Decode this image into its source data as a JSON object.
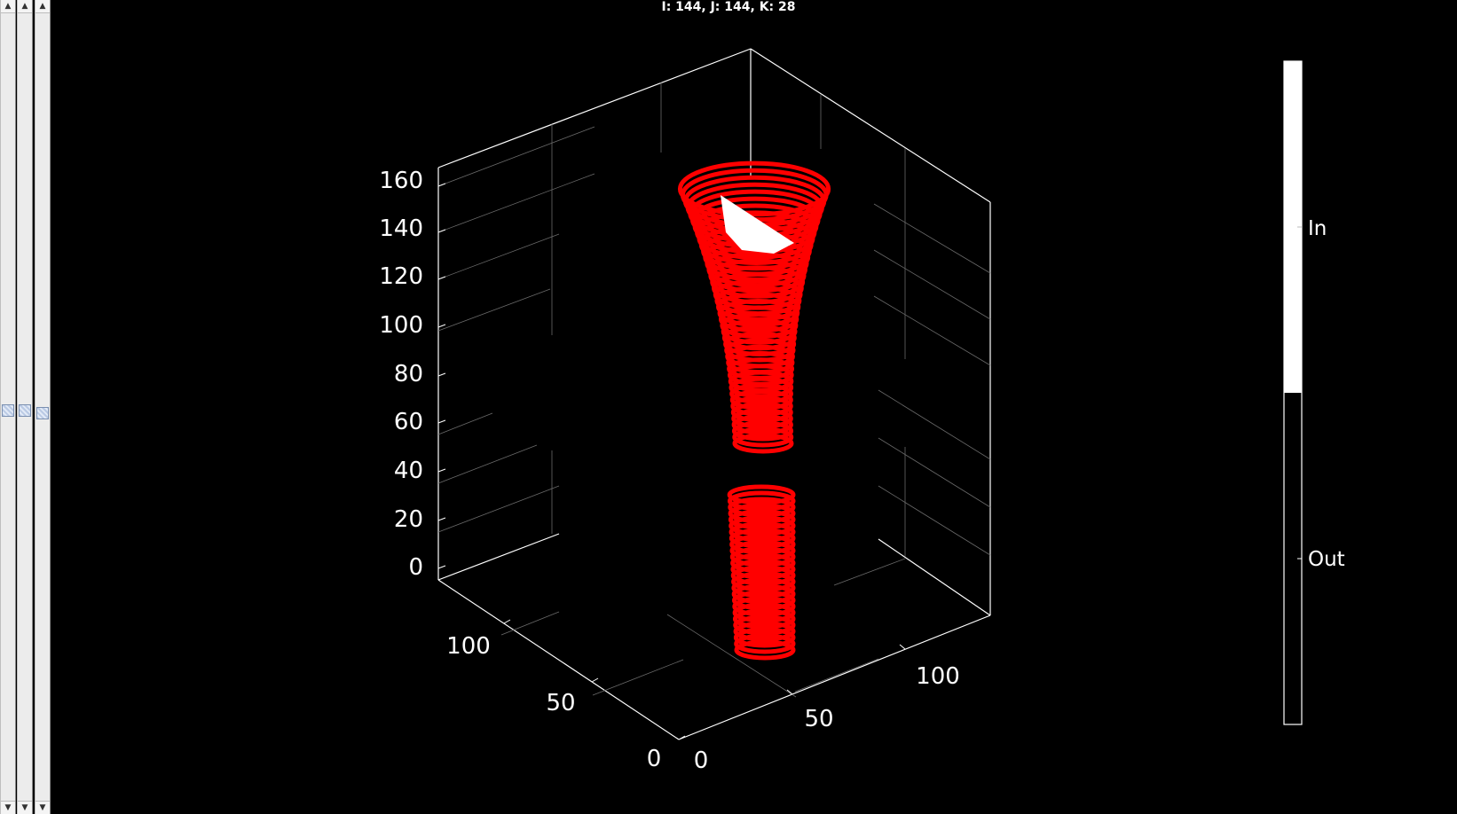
{
  "status": {
    "text": "I: 144, J:  144, K: 28"
  },
  "scrollbars": [
    {
      "name": "slice-scrollbar-i",
      "up_icon": "arrow-up-icon",
      "down_icon": "arrow-down-icon"
    },
    {
      "name": "slice-scrollbar-j",
      "up_icon": "arrow-up-icon",
      "down_icon": "arrow-down-icon"
    },
    {
      "name": "slice-scrollbar-k",
      "up_icon": "arrow-up-icon",
      "down_icon": "arrow-down-icon"
    }
  ],
  "plot3d": {
    "z_ticks": [
      "160",
      "140",
      "120",
      "100",
      "80",
      "60",
      "40",
      "20",
      "0"
    ],
    "y_ticks": [
      "100",
      "50",
      "0"
    ],
    "x_ticks": [
      "0",
      "50",
      "100"
    ],
    "structure_color": "#ff0000",
    "highlight_color": "#ffffff",
    "axes_color": "#ffffff"
  },
  "colorbar": {
    "labels": [
      "In",
      "Out"
    ],
    "in_color": "#ffffff",
    "out_color": "#000000"
  }
}
